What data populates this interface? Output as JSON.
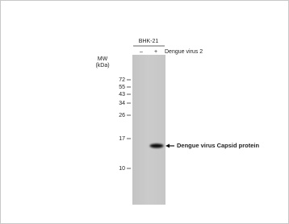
{
  "blot": {
    "cell_line": "BHK-21",
    "lanes": [
      "–",
      "+"
    ],
    "treatment": "Dengue virus 2",
    "mw_title": "MW",
    "mw_unit": "(kDa)",
    "markers": [
      72,
      55,
      43,
      34,
      26,
      17,
      10
    ],
    "band_label": "Dengue virus Capsid protein"
  }
}
